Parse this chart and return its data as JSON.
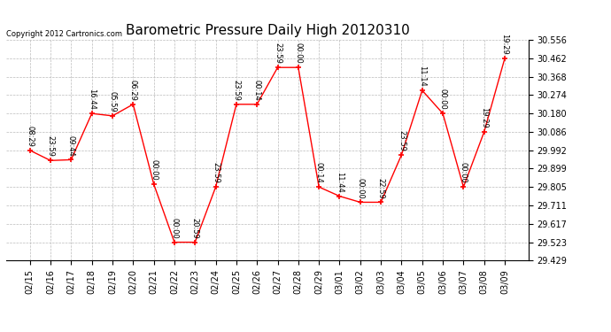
{
  "title": "Barometric Pressure Daily High 20120310",
  "copyright": "Copyright 2012 Cartronics.com",
  "x_labels": [
    "02/15",
    "02/16",
    "02/17",
    "02/18",
    "02/19",
    "02/20",
    "02/21",
    "02/22",
    "02/23",
    "02/24",
    "02/25",
    "02/26",
    "02/27",
    "02/28",
    "02/29",
    "03/01",
    "03/02",
    "03/03",
    "03/04",
    "03/05",
    "03/06",
    "03/07",
    "03/08",
    "03/09"
  ],
  "y_values": [
    29.992,
    29.94,
    29.944,
    30.18,
    30.168,
    30.227,
    29.82,
    29.523,
    29.523,
    29.805,
    30.227,
    30.227,
    30.415,
    30.415,
    29.805,
    29.758,
    29.727,
    29.727,
    29.969,
    30.298,
    30.18,
    29.805,
    30.086,
    30.462
  ],
  "point_labels": [
    "08:29",
    "23:59",
    "09:44",
    "16:44",
    "05:59",
    "06:29",
    "00:00",
    "00:00",
    "20:59",
    "23:59",
    "23:59",
    "00:14",
    "23:59",
    "00:00",
    "00:14",
    "11:44",
    "00:00",
    "22:59",
    "23:59",
    "11:14",
    "00:00",
    "00:00",
    "19:29",
    "19:29"
  ],
  "ylim_min": 29.429,
  "ylim_max": 30.556,
  "yticks": [
    29.429,
    29.523,
    29.617,
    29.711,
    29.805,
    29.899,
    29.992,
    30.086,
    30.18,
    30.274,
    30.368,
    30.462,
    30.556
  ],
  "line_color": "red",
  "marker_color": "red",
  "bg_color": "white",
  "grid_color": "#bbbbbb",
  "title_fontsize": 11,
  "tick_fontsize": 7,
  "annot_fontsize": 6,
  "copyright_fontsize": 6
}
